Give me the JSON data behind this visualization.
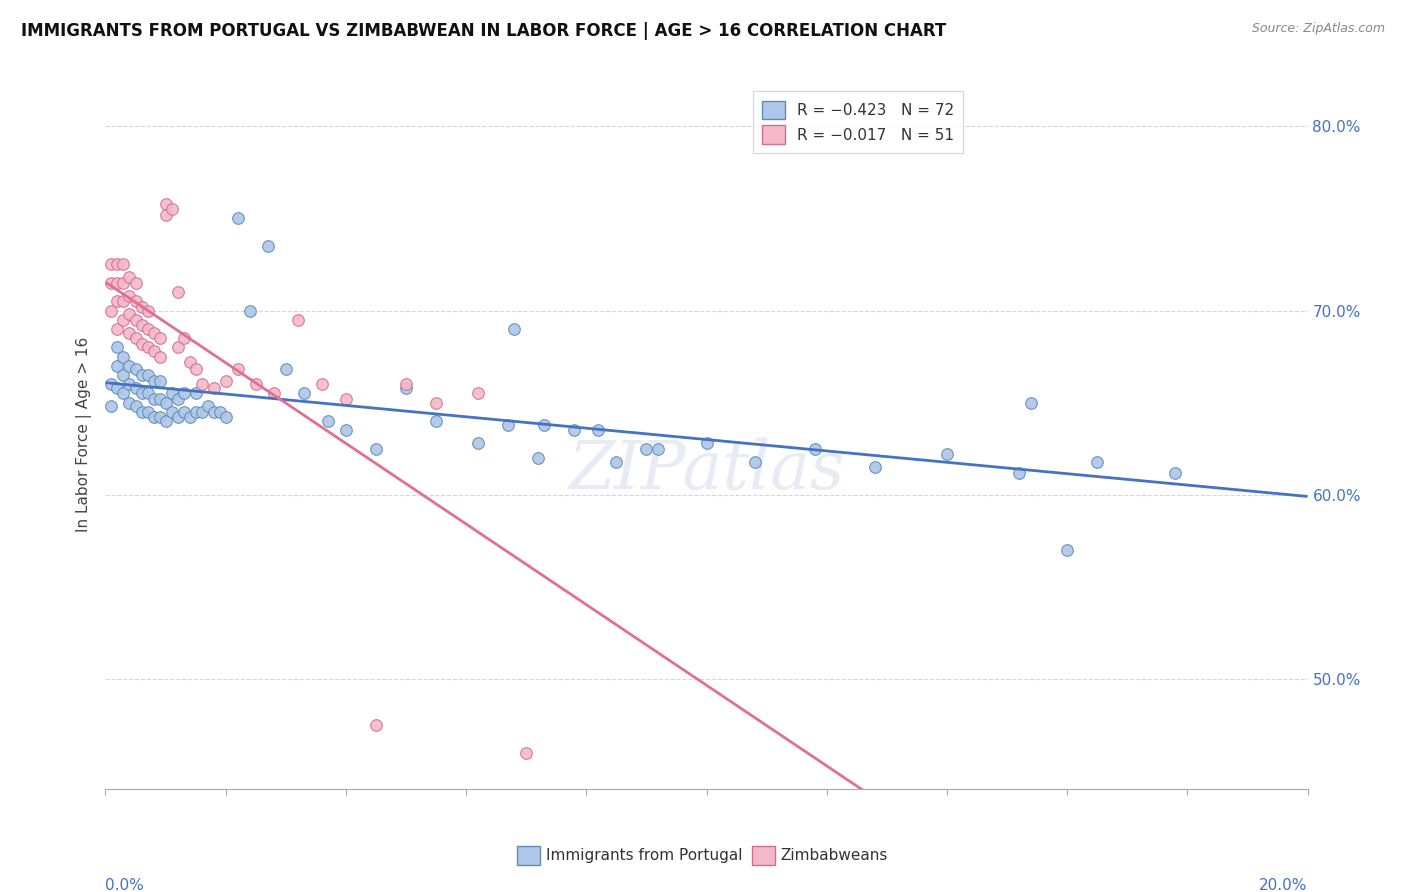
{
  "title": "IMMIGRANTS FROM PORTUGAL VS ZIMBABWEAN IN LABOR FORCE | AGE > 16 CORRELATION CHART",
  "source": "Source: ZipAtlas.com",
  "ylabel": "In Labor Force | Age > 16",
  "legend_entry1": "R = −0.423   N = 72",
  "legend_entry2": "R = −0.017   N = 51",
  "legend_label1": "Immigrants from Portugal",
  "legend_label2": "Zimbabweans",
  "color_portugal": "#aec6e8",
  "color_zimbabwe": "#f4b8c8",
  "color_edge_portugal": "#5b8db8",
  "color_edge_zimbabwe": "#d07090",
  "color_line_portugal": "#4472c4",
  "color_line_zimbabwe": "#e07090",
  "xlim": [
    0.0,
    0.2
  ],
  "ylim": [
    0.44,
    0.825
  ],
  "portugal_x": [
    0.001,
    0.001,
    0.002,
    0.002,
    0.002,
    0.003,
    0.003,
    0.003,
    0.004,
    0.004,
    0.004,
    0.005,
    0.005,
    0.005,
    0.006,
    0.006,
    0.006,
    0.007,
    0.007,
    0.007,
    0.008,
    0.008,
    0.008,
    0.009,
    0.009,
    0.009,
    0.01,
    0.01,
    0.011,
    0.011,
    0.012,
    0.012,
    0.013,
    0.013,
    0.014,
    0.015,
    0.015,
    0.016,
    0.017,
    0.018,
    0.019,
    0.02,
    0.022,
    0.024,
    0.027,
    0.03,
    0.033,
    0.037,
    0.04,
    0.045,
    0.05,
    0.055,
    0.062,
    0.067,
    0.072,
    0.078,
    0.085,
    0.092,
    0.1,
    0.108,
    0.118,
    0.128,
    0.14,
    0.152,
    0.165,
    0.178,
    0.154,
    0.068,
    0.073,
    0.082,
    0.09,
    0.16
  ],
  "portugal_y": [
    0.66,
    0.648,
    0.67,
    0.658,
    0.68,
    0.655,
    0.665,
    0.675,
    0.65,
    0.66,
    0.67,
    0.648,
    0.658,
    0.668,
    0.645,
    0.655,
    0.665,
    0.645,
    0.655,
    0.665,
    0.642,
    0.652,
    0.662,
    0.642,
    0.652,
    0.662,
    0.64,
    0.65,
    0.645,
    0.655,
    0.642,
    0.652,
    0.645,
    0.655,
    0.642,
    0.645,
    0.655,
    0.645,
    0.648,
    0.645,
    0.645,
    0.642,
    0.75,
    0.7,
    0.735,
    0.668,
    0.655,
    0.64,
    0.635,
    0.625,
    0.658,
    0.64,
    0.628,
    0.638,
    0.62,
    0.635,
    0.618,
    0.625,
    0.628,
    0.618,
    0.625,
    0.615,
    0.622,
    0.612,
    0.618,
    0.612,
    0.65,
    0.69,
    0.638,
    0.635,
    0.625,
    0.57
  ],
  "zimbabwe_x": [
    0.001,
    0.001,
    0.001,
    0.002,
    0.002,
    0.002,
    0.002,
    0.003,
    0.003,
    0.003,
    0.003,
    0.004,
    0.004,
    0.004,
    0.004,
    0.005,
    0.005,
    0.005,
    0.005,
    0.006,
    0.006,
    0.006,
    0.007,
    0.007,
    0.007,
    0.008,
    0.008,
    0.009,
    0.009,
    0.01,
    0.01,
    0.011,
    0.012,
    0.012,
    0.013,
    0.014,
    0.015,
    0.016,
    0.018,
    0.02,
    0.022,
    0.025,
    0.028,
    0.032,
    0.036,
    0.04,
    0.045,
    0.05,
    0.055,
    0.062,
    0.07
  ],
  "zimbabwe_y": [
    0.7,
    0.715,
    0.725,
    0.69,
    0.705,
    0.715,
    0.725,
    0.695,
    0.705,
    0.715,
    0.725,
    0.688,
    0.698,
    0.708,
    0.718,
    0.685,
    0.695,
    0.705,
    0.715,
    0.682,
    0.692,
    0.702,
    0.68,
    0.69,
    0.7,
    0.678,
    0.688,
    0.675,
    0.685,
    0.758,
    0.752,
    0.755,
    0.71,
    0.68,
    0.685,
    0.672,
    0.668,
    0.66,
    0.658,
    0.662,
    0.668,
    0.66,
    0.655,
    0.695,
    0.66,
    0.652,
    0.475,
    0.66,
    0.65,
    0.655,
    0.46
  ],
  "background_color": "#ffffff",
  "grid_color": "#cccccc"
}
